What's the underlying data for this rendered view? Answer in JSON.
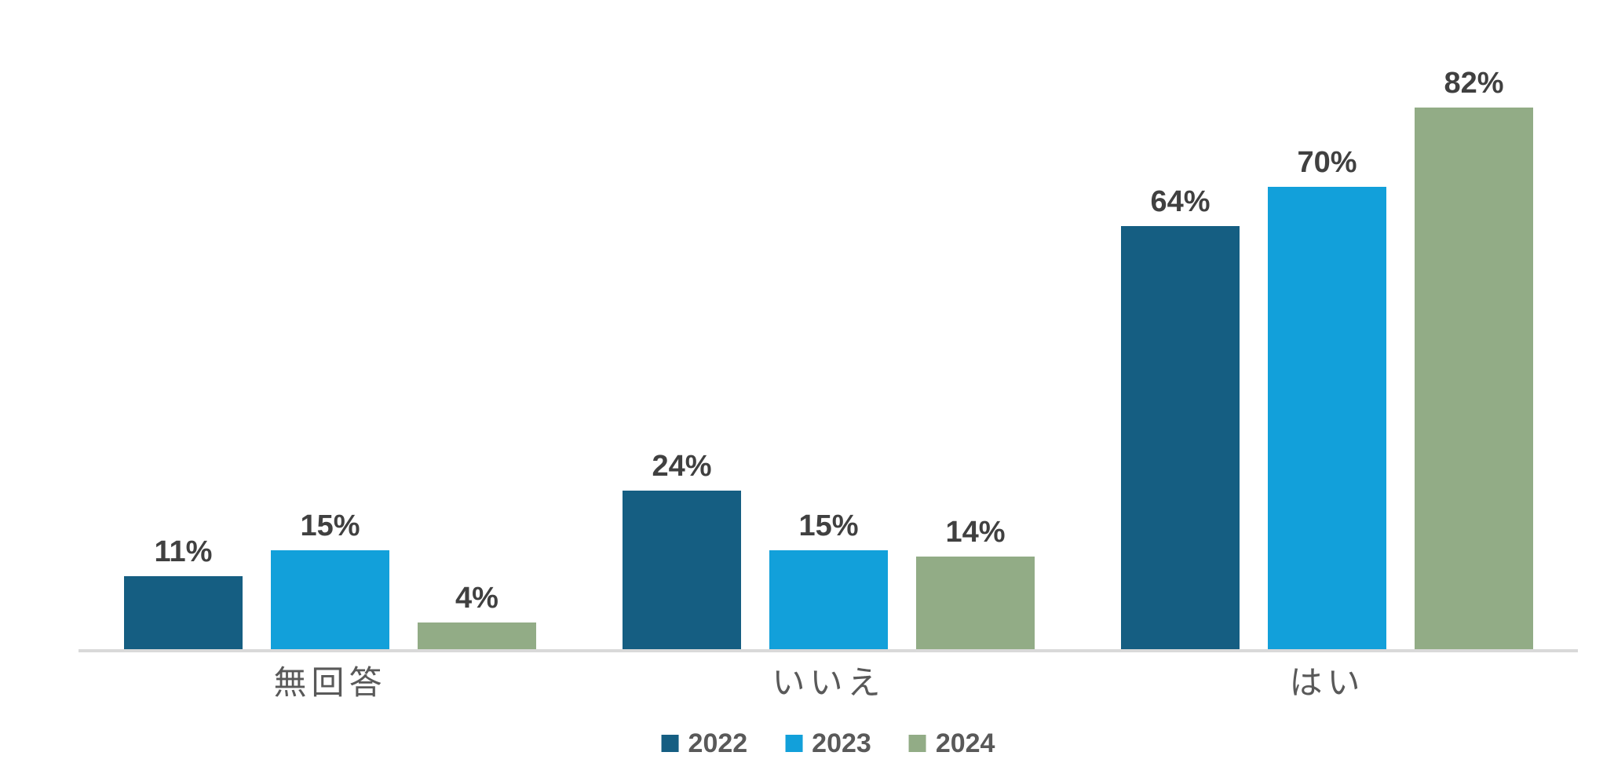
{
  "chart_data": {
    "type": "bar",
    "title": "",
    "xlabel": "",
    "ylabel": "",
    "categories": [
      "無回答",
      "いいえ",
      "はい"
    ],
    "series": [
      {
        "name": "2022",
        "color": "#155e82",
        "values": [
          11,
          24,
          64
        ]
      },
      {
        "name": "2023",
        "color": "#12a0da",
        "values": [
          15,
          15,
          70
        ]
      },
      {
        "name": "2024",
        "color": "#92ac86",
        "values": [
          4,
          14,
          82
        ]
      }
    ],
    "value_suffix": "%",
    "data_labels": [
      "11%",
      "15%",
      "4%",
      "24%",
      "15%",
      "14%",
      "64%",
      "70%",
      "82%"
    ],
    "ylim": [
      0,
      100
    ],
    "grid": false,
    "y_axis_visible": false,
    "legend_position": "bottom",
    "colors": {
      "value_label": "#404040",
      "category_label": "#595959",
      "legend_label": "#595959",
      "axis_line": "#d9d9d9",
      "background": "#ffffff"
    }
  }
}
